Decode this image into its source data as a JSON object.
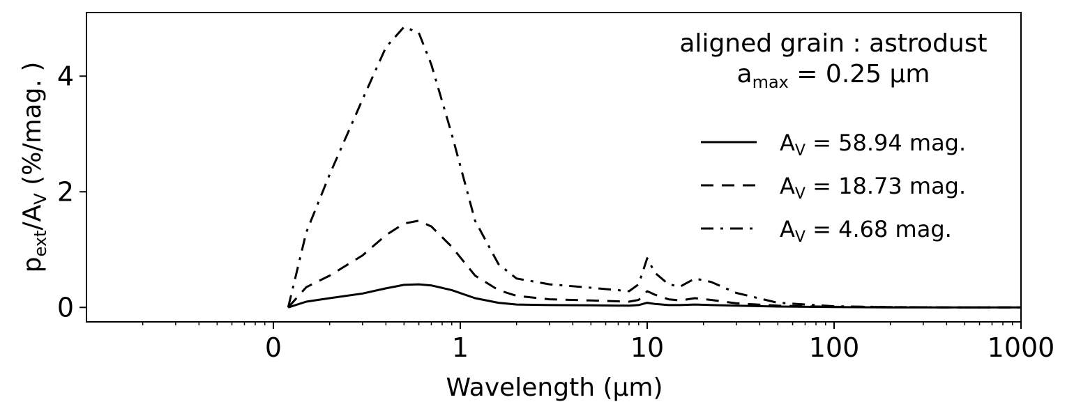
{
  "chart_data": {
    "type": "line",
    "title": "",
    "xlabel": "Wavelength (μm)",
    "ylabel": "p_ext/A_V (%/mag.)",
    "xscale": "log",
    "xlim": [
      0.01,
      1000
    ],
    "ylim": [
      -0.25,
      5.1
    ],
    "x_ticks": [
      {
        "value": 0.1,
        "label": "0"
      },
      {
        "value": 1,
        "label": "1"
      },
      {
        "value": 10,
        "label": "10"
      },
      {
        "value": 100,
        "label": "100"
      },
      {
        "value": 1000,
        "label": "1000"
      }
    ],
    "y_ticks": [
      {
        "value": 0,
        "label": "0"
      },
      {
        "value": 2,
        "label": "2"
      },
      {
        "value": 4,
        "label": "4"
      }
    ],
    "annotation": {
      "line1": "aligned grain : astrodust",
      "line2_prefix": "a",
      "line2_sub": "max",
      "line2_rest": " = 0.25 μm"
    },
    "legend": {
      "placement": "right"
    },
    "series": [
      {
        "name": "A_V = 58.94 mag.",
        "legend_prefix": "A",
        "legend_sub": "V",
        "legend_rest": " = 58.94 mag.",
        "style": "solid",
        "x": [
          0.12,
          0.15,
          0.2,
          0.3,
          0.4,
          0.5,
          0.6,
          0.7,
          0.9,
          1.2,
          1.6,
          2,
          3,
          5,
          8,
          9,
          10,
          11,
          13,
          15,
          18,
          22,
          30,
          50,
          100,
          200,
          500,
          1000
        ],
        "y": [
          0.0,
          0.1,
          0.16,
          0.24,
          0.33,
          0.39,
          0.4,
          0.38,
          0.3,
          0.16,
          0.08,
          0.05,
          0.04,
          0.035,
          0.03,
          0.04,
          0.08,
          0.06,
          0.04,
          0.04,
          0.05,
          0.04,
          0.03,
          0.015,
          0.005,
          0.0,
          0.0,
          0.0
        ]
      },
      {
        "name": "A_V = 18.73 mag.",
        "legend_prefix": "A",
        "legend_sub": "V",
        "legend_rest": " = 18.73 mag.",
        "style": "dashed",
        "x": [
          0.12,
          0.15,
          0.2,
          0.3,
          0.4,
          0.5,
          0.6,
          0.7,
          0.9,
          1.2,
          1.6,
          2,
          3,
          5,
          8,
          9,
          10,
          11,
          13,
          15,
          18,
          22,
          30,
          50,
          100,
          200,
          500,
          1000
        ],
        "y": [
          0.0,
          0.35,
          0.55,
          0.9,
          1.25,
          1.45,
          1.5,
          1.4,
          1.05,
          0.55,
          0.3,
          0.2,
          0.14,
          0.12,
          0.1,
          0.13,
          0.28,
          0.22,
          0.14,
          0.12,
          0.16,
          0.13,
          0.07,
          0.03,
          0.01,
          0.005,
          0.0,
          0.0
        ]
      },
      {
        "name": "A_V = 4.68 mag.",
        "legend_prefix": "A",
        "legend_sub": "V",
        "legend_rest": " = 4.68 mag.",
        "style": "dashdot",
        "x": [
          0.12,
          0.15,
          0.2,
          0.3,
          0.4,
          0.5,
          0.6,
          0.7,
          0.9,
          1.2,
          1.6,
          2,
          3,
          5,
          8,
          9,
          10,
          11,
          13,
          15,
          18,
          22,
          30,
          50,
          100,
          200,
          500,
          1000
        ],
        "y": [
          0.0,
          1.3,
          2.3,
          3.6,
          4.5,
          4.85,
          4.75,
          4.2,
          3.0,
          1.5,
          0.75,
          0.5,
          0.4,
          0.34,
          0.28,
          0.4,
          0.85,
          0.6,
          0.4,
          0.36,
          0.5,
          0.44,
          0.25,
          0.08,
          0.02,
          0.005,
          0.0,
          0.0
        ]
      }
    ]
  }
}
